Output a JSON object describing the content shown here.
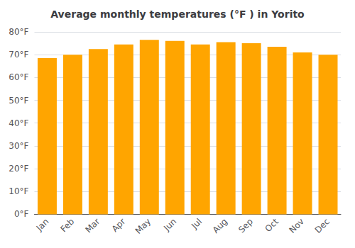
{
  "chart_data": {
    "type": "bar",
    "title": "Average monthly temperatures (°F ) in Yorito",
    "categories": [
      "Jan",
      "Feb",
      "Mar",
      "Apr",
      "May",
      "Jun",
      "Jul",
      "Aug",
      "Sep",
      "Oct",
      "Nov",
      "Dec"
    ],
    "values": [
      68.5,
      70.0,
      72.5,
      74.5,
      76.5,
      76.0,
      74.5,
      75.5,
      75.0,
      73.5,
      71.0,
      70.0
    ],
    "color": "#FFA500",
    "ylim": [
      0,
      80
    ],
    "yticks": [
      {
        "value": 0,
        "label": "0°F"
      },
      {
        "value": 10,
        "label": "10°F"
      },
      {
        "value": 20,
        "label": "20°F"
      },
      {
        "value": 30,
        "label": "30°F"
      },
      {
        "value": 40,
        "label": "40°F"
      },
      {
        "value": 50,
        "label": "50°F"
      },
      {
        "value": 60,
        "label": "60°F"
      },
      {
        "value": 70,
        "label": "70°F"
      },
      {
        "value": 80,
        "label": "80°F"
      }
    ],
    "grid": true
  }
}
